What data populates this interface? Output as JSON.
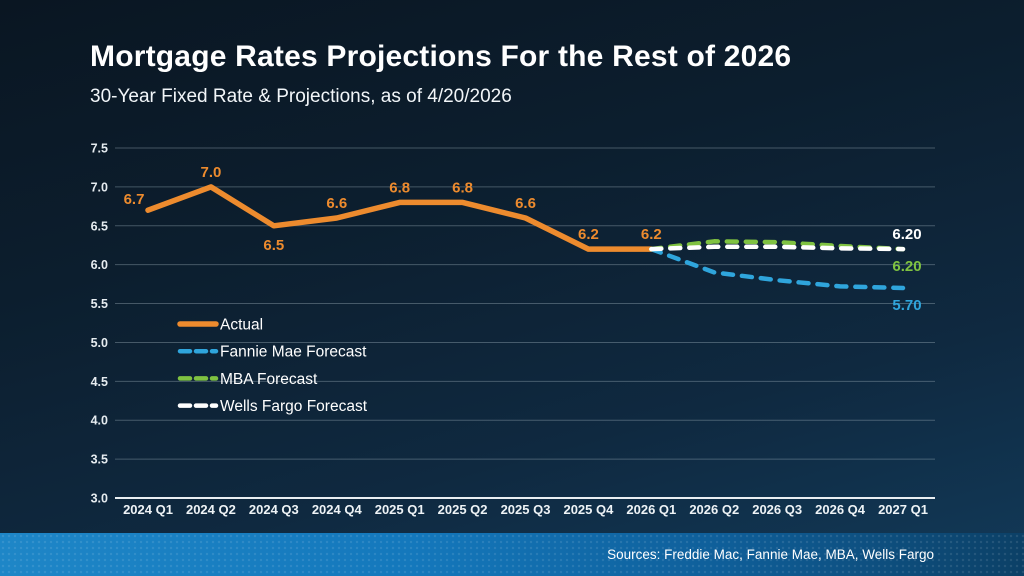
{
  "header": {
    "title": "Mortgage Rates Projections For the Rest of 2026",
    "subtitle": "30-Year Fixed Rate & Projections, as of 4/20/2026"
  },
  "footer": {
    "sources": "Sources: Freddie Mac, Fannie Mae, MBA, Wells Fargo"
  },
  "colors": {
    "background_top": "#0a1622",
    "background_bottom": "#123a59",
    "footer_bar_left": "#1E86C7",
    "footer_bar_right": "#0C4066",
    "gridline": "rgba(164,182,192,0.38)",
    "axis_line": "#E9EEF2",
    "actual": "#ED8B2E",
    "fannie_mae": "#2FA5DC",
    "mba": "#7FC241",
    "wells_fargo": "#FFFFFF"
  },
  "chart_data": {
    "type": "line",
    "title": "Mortgage Rates Projections For the Rest of 2026",
    "subtitle": "30-Year Fixed Rate & Projections, as of 4/20/2026",
    "categories": [
      "2024 Q1",
      "2024 Q2",
      "2024 Q3",
      "2024 Q4",
      "2025 Q1",
      "2025 Q2",
      "2025 Q3",
      "2025 Q4",
      "2026 Q1",
      "2026 Q2",
      "2026 Q3",
      "2026 Q4",
      "2027 Q1"
    ],
    "ylim": [
      3.0,
      7.5
    ],
    "yticks": [
      7.5,
      7.0,
      6.5,
      6.0,
      5.5,
      5.0,
      4.5,
      4.0,
      3.5,
      3.0
    ],
    "ytick_labels": [
      "7.5",
      "7.0",
      "6.5",
      "6.0",
      "5.5",
      "5.0",
      "4.5",
      "4.0",
      "3.5",
      "3.0"
    ],
    "grid": true,
    "legend_position": "inside-left",
    "series": [
      {
        "name": "Actual",
        "line_style": "solid",
        "color": "#ED8B2E",
        "start_index": 0,
        "values": [
          6.7,
          7.0,
          6.5,
          6.6,
          6.8,
          6.8,
          6.6,
          6.2,
          6.2
        ],
        "point_labels": [
          "6.7",
          "7.0",
          "6.5",
          "6.6",
          "6.8",
          "6.8",
          "6.6",
          "6.2",
          "6.2"
        ],
        "point_label_sides": [
          "above-left",
          "above",
          "below",
          "above",
          "above",
          "above",
          "above",
          "above",
          "above"
        ]
      },
      {
        "name": "Fannie Mae Forecast",
        "line_style": "dashed",
        "color": "#2FA5DC",
        "start_index": 8,
        "values": [
          6.2,
          5.9,
          5.8,
          5.72,
          5.7
        ],
        "end_label": "5.70",
        "end_label_side": "below"
      },
      {
        "name": "MBA Forecast",
        "line_style": "dashed",
        "color": "#7FC241",
        "start_index": 8,
        "values": [
          6.2,
          6.3,
          6.29,
          6.24,
          6.2
        ],
        "end_label": "6.20",
        "end_label_side": "below"
      },
      {
        "name": "Wells Fargo Forecast",
        "line_style": "dashed",
        "color": "#FFFFFF",
        "start_index": 8,
        "values": [
          6.2,
          6.23,
          6.23,
          6.21,
          6.2
        ],
        "end_label": "6.20",
        "end_label_side": "above"
      }
    ]
  }
}
